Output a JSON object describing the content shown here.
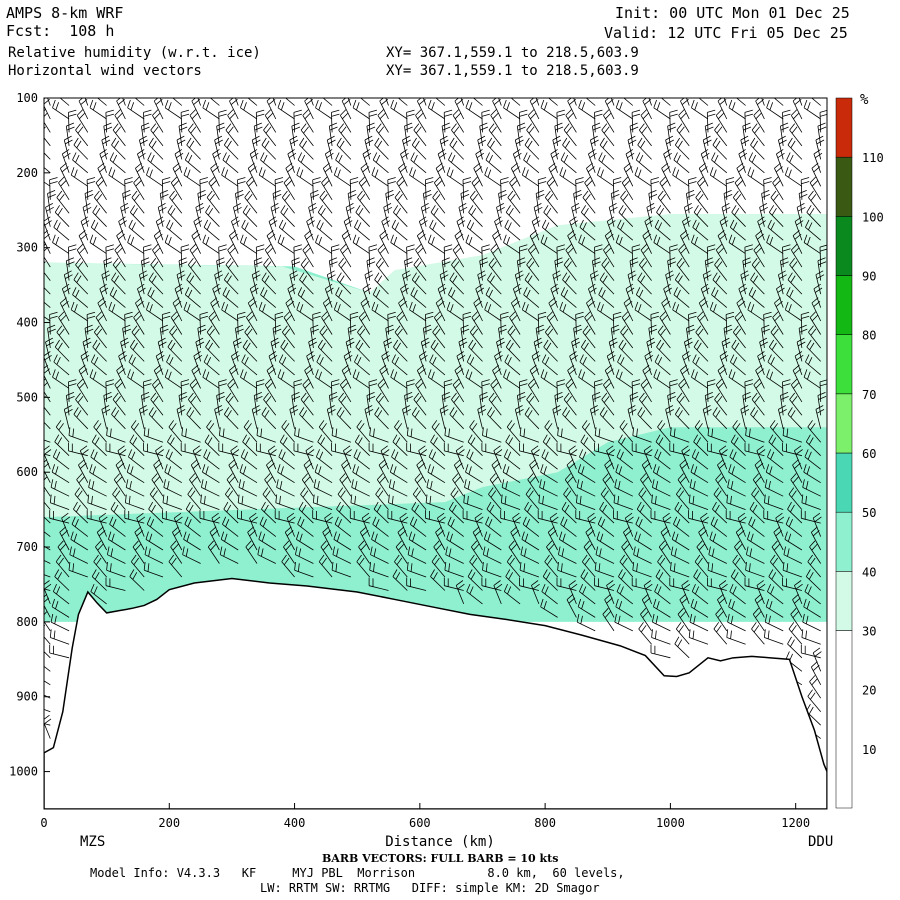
{
  "header": {
    "model": "AMPS 8-km WRF",
    "fcst": "Fcst:  108 h",
    "field1": "Relative humidity (w.r.t. ice)",
    "field2": "Horizontal wind vectors",
    "init": "Init: 00 UTC Mon 01 Dec 25",
    "valid": "Valid: 12 UTC Fri 05 Dec 25",
    "xy1": "XY= 367.1,559.1 to 218.5,603.9",
    "xy2": "XY= 367.1,559.1 to 218.5,603.9"
  },
  "footer": {
    "barb": "BARB VECTORS: FULL BARB = 10 kts",
    "info1": "Model Info: V4.3.3   KF     MYJ PBL  Morrison          8.0 km,  60 levels,",
    "info2": "LW: RRTM SW: RRTMG   DIFF: simple KM: 2D Smagor"
  },
  "chart_data": {
    "type": "heatmap",
    "title": "Relative humidity (w.r.t. ice)",
    "xlabel": "Distance (km)",
    "ylabel": "",
    "xlim": [
      0,
      1250
    ],
    "ylim": [
      1050,
      100
    ],
    "x_ticks": [
      0,
      200,
      400,
      600,
      800,
      1000,
      1200
    ],
    "y_ticks": [
      100,
      200,
      300,
      400,
      500,
      600,
      700,
      800,
      900,
      1000
    ],
    "x_end_labels": {
      "left": "MZS",
      "right": "DDU"
    },
    "colorbar": {
      "unit": "%",
      "labels": [
        10,
        20,
        30,
        40,
        50,
        60,
        70,
        80,
        90,
        100,
        110
      ],
      "bins": [
        {
          "from": 0,
          "to": 30,
          "color": "#ffffff"
        },
        {
          "from": 30,
          "to": 40,
          "color": "#d2fae6"
        },
        {
          "from": 40,
          "to": 50,
          "color": "#8ef0cf"
        },
        {
          "from": 50,
          "to": 60,
          "color": "#4ad8b4"
        },
        {
          "from": 60,
          "to": 70,
          "color": "#7cf06a"
        },
        {
          "from": 70,
          "to": 80,
          "color": "#3de03a"
        },
        {
          "from": 80,
          "to": 90,
          "color": "#14b814"
        },
        {
          "from": 90,
          "to": 100,
          "color": "#0a8a1e"
        },
        {
          "from": 100,
          "to": 110,
          "color": "#3a5a14"
        },
        {
          "from": 110,
          "to": 120,
          "color": "#c82a0a"
        }
      ]
    },
    "terrain_surface": [
      [
        0,
        975
      ],
      [
        15,
        968
      ],
      [
        30,
        920
      ],
      [
        45,
        835
      ],
      [
        55,
        790
      ],
      [
        70,
        760
      ],
      [
        85,
        775
      ],
      [
        100,
        788
      ],
      [
        120,
        785
      ],
      [
        140,
        782
      ],
      [
        160,
        778
      ],
      [
        180,
        770
      ],
      [
        200,
        757
      ],
      [
        240,
        748
      ],
      [
        300,
        742
      ],
      [
        360,
        748
      ],
      [
        420,
        752
      ],
      [
        500,
        760
      ],
      [
        560,
        770
      ],
      [
        620,
        780
      ],
      [
        680,
        790
      ],
      [
        740,
        797
      ],
      [
        800,
        805
      ],
      [
        860,
        818
      ],
      [
        920,
        832
      ],
      [
        960,
        845
      ],
      [
        990,
        872
      ],
      [
        1010,
        873
      ],
      [
        1030,
        868
      ],
      [
        1060,
        848
      ],
      [
        1080,
        852
      ],
      [
        1100,
        848
      ],
      [
        1130,
        846
      ],
      [
        1160,
        848
      ],
      [
        1190,
        850
      ],
      [
        1210,
        900
      ],
      [
        1230,
        945
      ],
      [
        1245,
        990
      ],
      [
        1250,
        1000
      ]
    ],
    "rh_regions": [
      {
        "bin": 40,
        "polygon": [
          [
            0,
            320
          ],
          [
            400,
            325
          ],
          [
            520,
            360
          ],
          [
            540,
            420
          ],
          [
            640,
            470
          ],
          [
            700,
            465
          ],
          [
            760,
            470
          ],
          [
            820,
            475
          ],
          [
            900,
            465
          ],
          [
            1000,
            470
          ],
          [
            1100,
            465
          ],
          [
            1250,
            460
          ],
          [
            1250,
            800
          ],
          [
            0,
            800
          ]
        ]
      },
      {
        "bin": 30,
        "polygon": [
          [
            0,
            320
          ],
          [
            380,
            325
          ],
          [
            520,
            360
          ],
          [
            560,
            330
          ],
          [
            700,
            310
          ],
          [
            820,
            270
          ],
          [
            1000,
            255
          ],
          [
            1250,
            255
          ],
          [
            1250,
            540
          ],
          [
            1000,
            540
          ],
          [
            900,
            560
          ],
          [
            820,
            600
          ],
          [
            700,
            620
          ],
          [
            640,
            640
          ],
          [
            0,
            660
          ]
        ]
      }
    ]
  }
}
